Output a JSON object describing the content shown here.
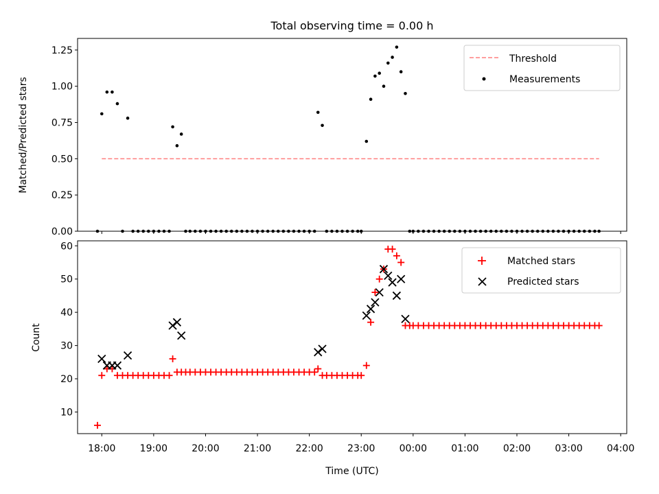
{
  "figure": {
    "title": "Total observing time = 0.00 h"
  },
  "chart_data": [
    {
      "type": "scatter",
      "panel": "top",
      "ylabel": "Matched/Predicted stars",
      "xlim": [
        "17:32",
        "04:07"
      ],
      "ylim": [
        0,
        1.33
      ],
      "yticks": [
        0.0,
        0.25,
        0.5,
        0.75,
        1.0,
        1.25
      ],
      "ytick_labels": [
        "0.00",
        "0.25",
        "0.50",
        "0.75",
        "1.00",
        "1.25"
      ],
      "legend_position": "top-right",
      "threshold": {
        "name": "Threshold",
        "y": 0.5,
        "x_start": "18:00",
        "x_end": "03:35",
        "color": "#ff7f7f",
        "style": "dashed"
      },
      "series": [
        {
          "name": "Measurements",
          "color": "#000000",
          "marker": "dot",
          "points": [
            [
              "17:55",
              0
            ],
            [
              "18:00",
              0.81
            ],
            [
              "18:06",
              0.96
            ],
            [
              "18:12",
              0.96
            ],
            [
              "18:18",
              0.88
            ],
            [
              "18:24",
              0
            ],
            [
              "18:30",
              0.78
            ],
            [
              "18:36",
              0
            ],
            [
              "18:42",
              0
            ],
            [
              "18:48",
              0
            ],
            [
              "18:54",
              0
            ],
            [
              "19:00",
              0
            ],
            [
              "19:06",
              0
            ],
            [
              "19:12",
              0
            ],
            [
              "19:18",
              0
            ],
            [
              "19:22",
              0.72
            ],
            [
              "19:27",
              0.59
            ],
            [
              "19:32",
              0.67
            ],
            [
              "19:37",
              0
            ],
            [
              "19:42",
              0
            ],
            [
              "19:48",
              0
            ],
            [
              "19:54",
              0
            ],
            [
              "20:00",
              0
            ],
            [
              "20:06",
              0
            ],
            [
              "20:12",
              0
            ],
            [
              "20:18",
              0
            ],
            [
              "20:24",
              0
            ],
            [
              "20:30",
              0
            ],
            [
              "20:36",
              0
            ],
            [
              "20:42",
              0
            ],
            [
              "20:48",
              0
            ],
            [
              "20:54",
              0
            ],
            [
              "21:00",
              0
            ],
            [
              "21:06",
              0
            ],
            [
              "21:12",
              0
            ],
            [
              "21:18",
              0
            ],
            [
              "21:24",
              0
            ],
            [
              "21:30",
              0
            ],
            [
              "21:36",
              0
            ],
            [
              "21:42",
              0
            ],
            [
              "21:48",
              0
            ],
            [
              "21:54",
              0
            ],
            [
              "22:00",
              0
            ],
            [
              "22:06",
              0
            ],
            [
              "22:10",
              0.82
            ],
            [
              "22:15",
              0.73
            ],
            [
              "22:20",
              0
            ],
            [
              "22:26",
              0
            ],
            [
              "22:32",
              0
            ],
            [
              "22:38",
              0
            ],
            [
              "22:44",
              0
            ],
            [
              "22:50",
              0
            ],
            [
              "22:56",
              0
            ],
            [
              "23:00",
              0
            ],
            [
              "23:06",
              0.62
            ],
            [
              "23:11",
              0.91
            ],
            [
              "23:16",
              1.07
            ],
            [
              "23:21",
              1.09
            ],
            [
              "23:26",
              1.0
            ],
            [
              "23:31",
              1.16
            ],
            [
              "23:36",
              1.2
            ],
            [
              "23:41",
              1.27
            ],
            [
              "23:46",
              1.1
            ],
            [
              "23:51",
              0.95
            ],
            [
              "23:56",
              0
            ],
            [
              "00:00",
              0
            ],
            [
              "00:06",
              0
            ],
            [
              "00:12",
              0
            ],
            [
              "00:18",
              0
            ],
            [
              "00:24",
              0
            ],
            [
              "00:30",
              0
            ],
            [
              "00:36",
              0
            ],
            [
              "00:42",
              0
            ],
            [
              "00:48",
              0
            ],
            [
              "00:54",
              0
            ],
            [
              "01:00",
              0
            ],
            [
              "01:06",
              0
            ],
            [
              "01:12",
              0
            ],
            [
              "01:18",
              0
            ],
            [
              "01:24",
              0
            ],
            [
              "01:30",
              0
            ],
            [
              "01:36",
              0
            ],
            [
              "01:42",
              0
            ],
            [
              "01:48",
              0
            ],
            [
              "01:54",
              0
            ],
            [
              "02:00",
              0
            ],
            [
              "02:06",
              0
            ],
            [
              "02:12",
              0
            ],
            [
              "02:18",
              0
            ],
            [
              "02:24",
              0
            ],
            [
              "02:30",
              0
            ],
            [
              "02:36",
              0
            ],
            [
              "02:42",
              0
            ],
            [
              "02:48",
              0
            ],
            [
              "02:54",
              0
            ],
            [
              "03:00",
              0
            ],
            [
              "03:06",
              0
            ],
            [
              "03:12",
              0
            ],
            [
              "03:18",
              0
            ],
            [
              "03:24",
              0
            ],
            [
              "03:30",
              0
            ],
            [
              "03:35",
              0
            ]
          ]
        }
      ]
    },
    {
      "type": "scatter",
      "panel": "bottom",
      "xlabel": "Time (UTC)",
      "ylabel": "Count",
      "xlim": [
        "17:32",
        "04:07"
      ],
      "ylim": [
        3.5,
        61.5
      ],
      "yticks": [
        10,
        20,
        30,
        40,
        50,
        60
      ],
      "ytick_labels": [
        "10",
        "20",
        "30",
        "40",
        "50",
        "60"
      ],
      "xticks": [
        "18:00",
        "19:00",
        "20:00",
        "21:00",
        "22:00",
        "23:00",
        "00:00",
        "01:00",
        "02:00",
        "03:00",
        "04:00"
      ],
      "xtick_labels": [
        "18:00",
        "19:00",
        "20:00",
        "21:00",
        "22:00",
        "23:00",
        "00:00",
        "01:00",
        "02:00",
        "03:00",
        "04:00"
      ],
      "legend_position": "top-right",
      "series": [
        {
          "name": "Matched stars",
          "color": "#ff0000",
          "marker": "plus",
          "points": [
            [
              "17:55",
              6
            ],
            [
              "18:00",
              21
            ],
            [
              "18:06",
              23
            ],
            [
              "18:12",
              23
            ],
            [
              "18:18",
              21
            ],
            [
              "18:24",
              21
            ],
            [
              "18:30",
              21
            ],
            [
              "18:36",
              21
            ],
            [
              "18:42",
              21
            ],
            [
              "18:48",
              21
            ],
            [
              "18:54",
              21
            ],
            [
              "19:00",
              21
            ],
            [
              "19:06",
              21
            ],
            [
              "19:12",
              21
            ],
            [
              "19:18",
              21
            ],
            [
              "19:22",
              26
            ],
            [
              "19:27",
              22
            ],
            [
              "19:32",
              22
            ],
            [
              "19:37",
              22
            ],
            [
              "19:42",
              22
            ],
            [
              "19:48",
              22
            ],
            [
              "19:54",
              22
            ],
            [
              "20:00",
              22
            ],
            [
              "20:06",
              22
            ],
            [
              "20:12",
              22
            ],
            [
              "20:18",
              22
            ],
            [
              "20:24",
              22
            ],
            [
              "20:30",
              22
            ],
            [
              "20:36",
              22
            ],
            [
              "20:42",
              22
            ],
            [
              "20:48",
              22
            ],
            [
              "20:54",
              22
            ],
            [
              "21:00",
              22
            ],
            [
              "21:06",
              22
            ],
            [
              "21:12",
              22
            ],
            [
              "21:18",
              22
            ],
            [
              "21:24",
              22
            ],
            [
              "21:30",
              22
            ],
            [
              "21:36",
              22
            ],
            [
              "21:42",
              22
            ],
            [
              "21:48",
              22
            ],
            [
              "21:54",
              22
            ],
            [
              "22:00",
              22
            ],
            [
              "22:06",
              22
            ],
            [
              "22:10",
              23
            ],
            [
              "22:15",
              21
            ],
            [
              "22:20",
              21
            ],
            [
              "22:26",
              21
            ],
            [
              "22:32",
              21
            ],
            [
              "22:38",
              21
            ],
            [
              "22:44",
              21
            ],
            [
              "22:50",
              21
            ],
            [
              "22:56",
              21
            ],
            [
              "23:00",
              21
            ],
            [
              "23:06",
              24
            ],
            [
              "23:11",
              37
            ],
            [
              "23:16",
              46
            ],
            [
              "23:21",
              50
            ],
            [
              "23:26",
              53
            ],
            [
              "23:31",
              59
            ],
            [
              "23:36",
              59
            ],
            [
              "23:41",
              57
            ],
            [
              "23:46",
              55
            ],
            [
              "23:51",
              36
            ],
            [
              "23:56",
              36
            ],
            [
              "00:00",
              36
            ],
            [
              "00:06",
              36
            ],
            [
              "00:12",
              36
            ],
            [
              "00:18",
              36
            ],
            [
              "00:24",
              36
            ],
            [
              "00:30",
              36
            ],
            [
              "00:36",
              36
            ],
            [
              "00:42",
              36
            ],
            [
              "00:48",
              36
            ],
            [
              "00:54",
              36
            ],
            [
              "01:00",
              36
            ],
            [
              "01:06",
              36
            ],
            [
              "01:12",
              36
            ],
            [
              "01:18",
              36
            ],
            [
              "01:24",
              36
            ],
            [
              "01:30",
              36
            ],
            [
              "01:36",
              36
            ],
            [
              "01:42",
              36
            ],
            [
              "01:48",
              36
            ],
            [
              "01:54",
              36
            ],
            [
              "02:00",
              36
            ],
            [
              "02:06",
              36
            ],
            [
              "02:12",
              36
            ],
            [
              "02:18",
              36
            ],
            [
              "02:24",
              36
            ],
            [
              "02:30",
              36
            ],
            [
              "02:36",
              36
            ],
            [
              "02:42",
              36
            ],
            [
              "02:48",
              36
            ],
            [
              "02:54",
              36
            ],
            [
              "03:00",
              36
            ],
            [
              "03:06",
              36
            ],
            [
              "03:12",
              36
            ],
            [
              "03:18",
              36
            ],
            [
              "03:24",
              36
            ],
            [
              "03:30",
              36
            ],
            [
              "03:35",
              36
            ]
          ]
        },
        {
          "name": "Predicted stars",
          "color": "#000000",
          "marker": "x",
          "points": [
            [
              "18:00",
              26
            ],
            [
              "18:06",
              24
            ],
            [
              "18:12",
              24
            ],
            [
              "18:18",
              24
            ],
            [
              "18:30",
              27
            ],
            [
              "19:22",
              36
            ],
            [
              "19:27",
              37
            ],
            [
              "19:32",
              33
            ],
            [
              "22:10",
              28
            ],
            [
              "22:15",
              29
            ],
            [
              "23:06",
              39
            ],
            [
              "23:11",
              41
            ],
            [
              "23:16",
              43
            ],
            [
              "23:21",
              46
            ],
            [
              "23:26",
              53
            ],
            [
              "23:31",
              51
            ],
            [
              "23:36",
              49
            ],
            [
              "23:41",
              45
            ],
            [
              "23:46",
              50
            ],
            [
              "23:51",
              38
            ]
          ]
        }
      ]
    }
  ]
}
